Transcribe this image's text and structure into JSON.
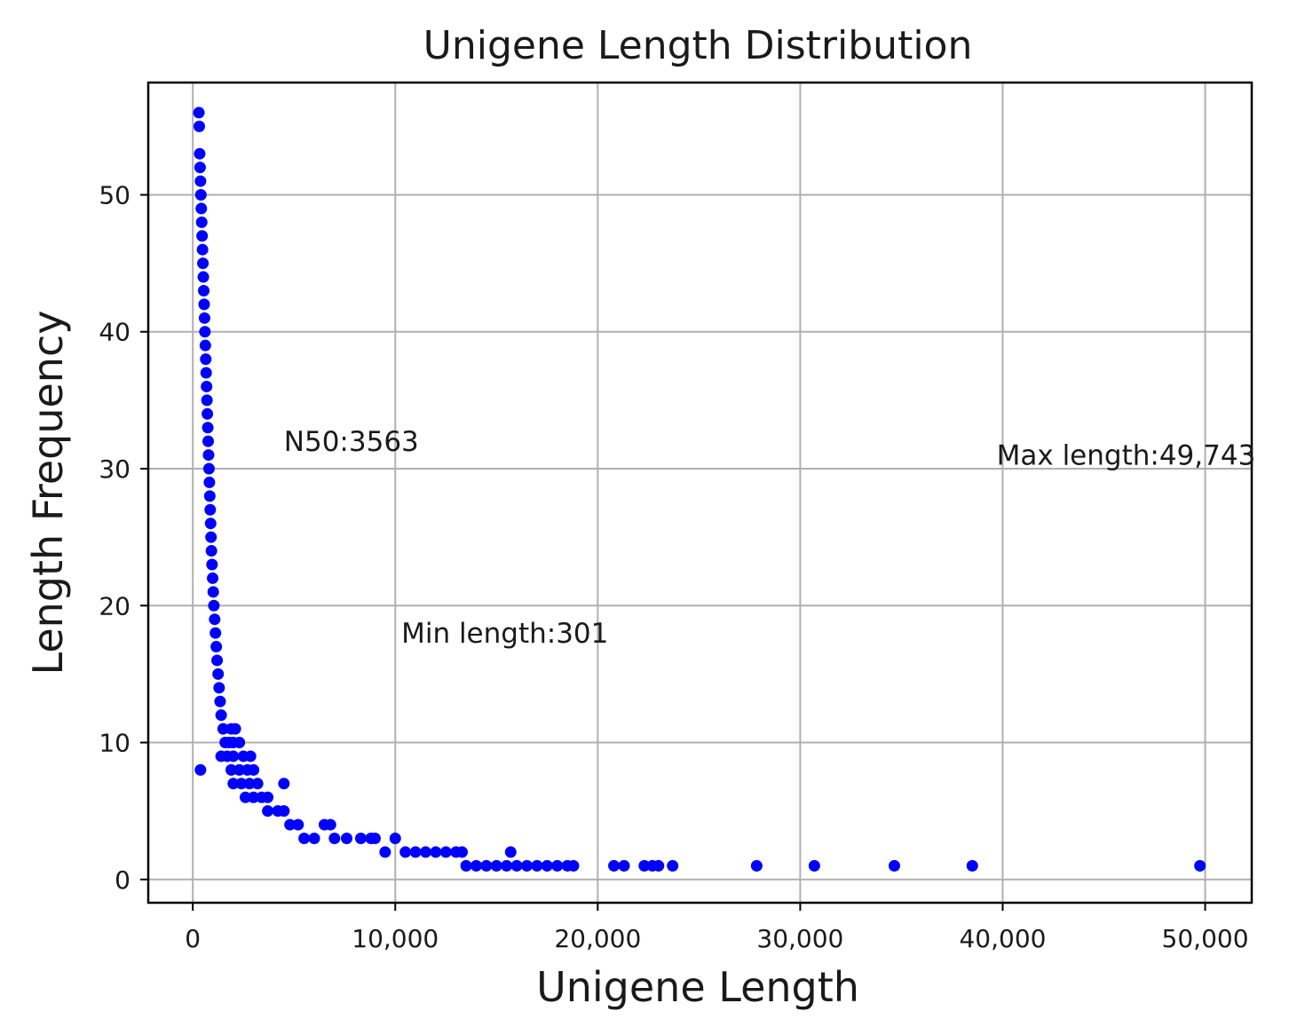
{
  "chart_data": {
    "type": "scatter",
    "title": "Unigene Length Distribution",
    "xlabel": "Unigene Length",
    "ylabel": "Length Frequency",
    "xlim": [
      -2200,
      52300
    ],
    "ylim": [
      -1.7,
      58.2
    ],
    "xticks": [
      0,
      10000,
      20000,
      30000,
      40000,
      50000
    ],
    "xtick_labels": [
      "0",
      "10,000",
      "20,000",
      "30,000",
      "40,000",
      "50,000"
    ],
    "yticks": [
      0,
      10,
      20,
      30,
      40,
      50
    ],
    "ytick_labels": [
      "0",
      "10",
      "20",
      "30",
      "40",
      "50"
    ],
    "grid": true,
    "marker_color": "#0000ff",
    "annotations": [
      {
        "text": "N50:3563",
        "x": 4500,
        "y": 32
      },
      {
        "text": "Min length:301",
        "x": 10300,
        "y": 18
      },
      {
        "text": "Max length:49,743",
        "x": 39700,
        "y": 31
      }
    ],
    "series": [
      {
        "points": [
          [
            301,
            56
          ],
          [
            320,
            55
          ],
          [
            340,
            53
          ],
          [
            360,
            52
          ],
          [
            380,
            51
          ],
          [
            400,
            50
          ],
          [
            420,
            49
          ],
          [
            440,
            48
          ],
          [
            460,
            47
          ],
          [
            480,
            46
          ],
          [
            500,
            45
          ],
          [
            520,
            44
          ],
          [
            540,
            43
          ],
          [
            560,
            42
          ],
          [
            580,
            41
          ],
          [
            600,
            40
          ],
          [
            620,
            39
          ],
          [
            640,
            38
          ],
          [
            660,
            37
          ],
          [
            680,
            36
          ],
          [
            700,
            35
          ],
          [
            720,
            34
          ],
          [
            740,
            33
          ],
          [
            760,
            32
          ],
          [
            780,
            31
          ],
          [
            800,
            30
          ],
          [
            820,
            29
          ],
          [
            840,
            28
          ],
          [
            860,
            27
          ],
          [
            880,
            26
          ],
          [
            900,
            25
          ],
          [
            920,
            24
          ],
          [
            950,
            23
          ],
          [
            980,
            22
          ],
          [
            1010,
            21
          ],
          [
            1040,
            20
          ],
          [
            1080,
            19
          ],
          [
            1120,
            18
          ],
          [
            1160,
            17
          ],
          [
            1200,
            16
          ],
          [
            1250,
            15
          ],
          [
            1300,
            14
          ],
          [
            1350,
            13
          ],
          [
            1400,
            12
          ],
          [
            1500,
            11
          ],
          [
            1900,
            11
          ],
          [
            2100,
            11
          ],
          [
            1600,
            10
          ],
          [
            1800,
            10
          ],
          [
            2000,
            10
          ],
          [
            2300,
            10
          ],
          [
            380,
            8
          ],
          [
            1400,
            9
          ],
          [
            1700,
            9
          ],
          [
            2000,
            9
          ],
          [
            2500,
            9
          ],
          [
            2850,
            9
          ],
          [
            1900,
            8
          ],
          [
            2300,
            8
          ],
          [
            2700,
            8
          ],
          [
            3000,
            8
          ],
          [
            2000,
            7
          ],
          [
            2400,
            7
          ],
          [
            2800,
            7
          ],
          [
            3200,
            7
          ],
          [
            4500,
            7
          ],
          [
            2600,
            6
          ],
          [
            3000,
            6
          ],
          [
            3400,
            6
          ],
          [
            3700,
            6
          ],
          [
            3700,
            5
          ],
          [
            4200,
            5
          ],
          [
            4500,
            5
          ],
          [
            4800,
            4
          ],
          [
            5200,
            4
          ],
          [
            6500,
            4
          ],
          [
            6800,
            4
          ],
          [
            5500,
            3
          ],
          [
            6000,
            3
          ],
          [
            7000,
            3
          ],
          [
            7600,
            3
          ],
          [
            8300,
            3
          ],
          [
            8800,
            3
          ],
          [
            9000,
            3
          ],
          [
            10000,
            3
          ],
          [
            9500,
            2
          ],
          [
            10500,
            2
          ],
          [
            11000,
            2
          ],
          [
            11500,
            2
          ],
          [
            12000,
            2
          ],
          [
            12500,
            2
          ],
          [
            13000,
            2
          ],
          [
            13300,
            2
          ],
          [
            15700,
            2
          ],
          [
            13500,
            1
          ],
          [
            14000,
            1
          ],
          [
            14500,
            1
          ],
          [
            15000,
            1
          ],
          [
            15500,
            1
          ],
          [
            16000,
            1
          ],
          [
            16500,
            1
          ],
          [
            17000,
            1
          ],
          [
            17500,
            1
          ],
          [
            18000,
            1
          ],
          [
            18500,
            1
          ],
          [
            18800,
            1
          ],
          [
            20800,
            1
          ],
          [
            21300,
            1
          ],
          [
            22300,
            1
          ],
          [
            22700,
            1
          ],
          [
            23000,
            1
          ],
          [
            23700,
            1
          ],
          [
            27850,
            1
          ],
          [
            30700,
            1
          ],
          [
            34650,
            1
          ],
          [
            38500,
            1
          ],
          [
            49743,
            1
          ]
        ]
      }
    ]
  }
}
